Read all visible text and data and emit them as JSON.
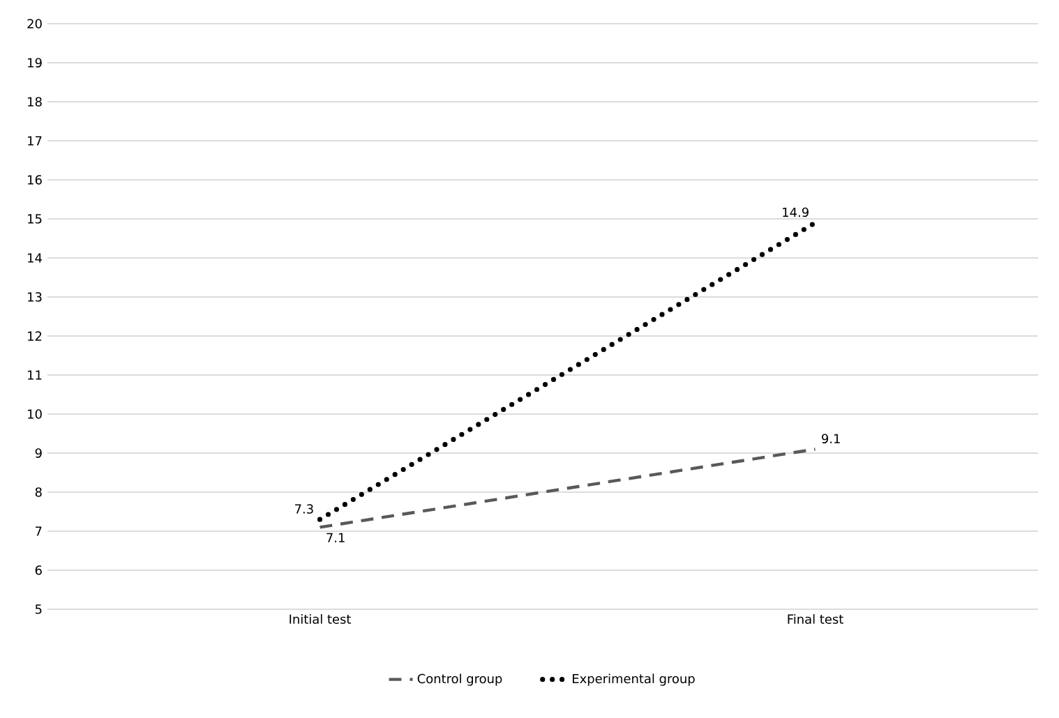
{
  "chart_data": {
    "type": "line",
    "categories": [
      "Initial test",
      "Final test"
    ],
    "series": [
      {
        "name": "Control group",
        "color": "#595959",
        "values": [
          7.1,
          9.1
        ],
        "line_style": "dashed",
        "marker": "none"
      },
      {
        "name": "Experimental group",
        "color": "#000000",
        "values": [
          7.3,
          14.9
        ],
        "line_style": "dotted",
        "marker": "none"
      }
    ],
    "ylim": [
      5,
      20
    ],
    "yticks": [
      5,
      6,
      7,
      8,
      9,
      10,
      11,
      12,
      13,
      14,
      15,
      16,
      17,
      18,
      19,
      20
    ],
    "grid": "y",
    "legend": "bottom",
    "data_labels": true
  }
}
